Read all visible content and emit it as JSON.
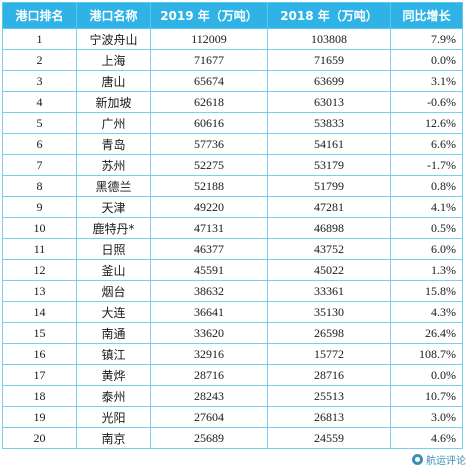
{
  "table": {
    "headers": {
      "rank": "港口排名",
      "name": "港口名称",
      "y2019": "2019 年（万吨）",
      "y2018": "2018 年（万吨）",
      "growth": "同比增长"
    },
    "rows": [
      {
        "rank": "1",
        "name": "宁波舟山",
        "y2019": "112009",
        "y2018": "103808",
        "growth": "7.9%"
      },
      {
        "rank": "2",
        "name": "上海",
        "y2019": "71677",
        "y2018": "71659",
        "growth": "0.0%"
      },
      {
        "rank": "3",
        "name": "唐山",
        "y2019": "65674",
        "y2018": "63699",
        "growth": "3.1%"
      },
      {
        "rank": "4",
        "name": "新加坡",
        "y2019": "62618",
        "y2018": "63013",
        "growth": "-0.6%"
      },
      {
        "rank": "5",
        "name": "广州",
        "y2019": "60616",
        "y2018": "53833",
        "growth": "12.6%"
      },
      {
        "rank": "6",
        "name": "青岛",
        "y2019": "57736",
        "y2018": "54161",
        "growth": "6.6%"
      },
      {
        "rank": "7",
        "name": "苏州",
        "y2019": "52275",
        "y2018": "53179",
        "growth": "-1.7%"
      },
      {
        "rank": "8",
        "name": "黑德兰",
        "y2019": "52188",
        "y2018": "51799",
        "growth": "0.8%"
      },
      {
        "rank": "9",
        "name": "天津",
        "y2019": "49220",
        "y2018": "47281",
        "growth": "4.1%"
      },
      {
        "rank": "10",
        "name": "鹿特丹*",
        "y2019": "47131",
        "y2018": "46898",
        "growth": "0.5%"
      },
      {
        "rank": "11",
        "name": "日照",
        "y2019": "46377",
        "y2018": "43752",
        "growth": "6.0%"
      },
      {
        "rank": "12",
        "name": "釜山",
        "y2019": "45591",
        "y2018": "45022",
        "growth": "1.3%"
      },
      {
        "rank": "13",
        "name": "烟台",
        "y2019": "38632",
        "y2018": "33361",
        "growth": "15.8%"
      },
      {
        "rank": "14",
        "name": "大连",
        "y2019": "36641",
        "y2018": "35130",
        "growth": "4.3%"
      },
      {
        "rank": "15",
        "name": "南通",
        "y2019": "33620",
        "y2018": "26598",
        "growth": "26.4%"
      },
      {
        "rank": "16",
        "name": "镇江",
        "y2019": "32916",
        "y2018": "15772",
        "growth": "108.7%"
      },
      {
        "rank": "17",
        "name": "黄烨",
        "y2019": "28716",
        "y2018": "28716",
        "growth": "0.0%"
      },
      {
        "rank": "18",
        "name": "泰州",
        "y2019": "28243",
        "y2018": "25513",
        "growth": "10.7%"
      },
      {
        "rank": "19",
        "name": "光阳",
        "y2019": "27604",
        "y2018": "26813",
        "growth": "3.0%"
      },
      {
        "rank": "20",
        "name": "南京",
        "y2019": "25689",
        "y2018": "24559",
        "growth": "4.6%"
      }
    ]
  },
  "watermark": {
    "text": "航运评论",
    "icon": "wechat-logo-icon"
  },
  "colors": {
    "header_bg": "#2fb2e5",
    "header_text": "#ffffff",
    "border": "#79cfef"
  }
}
